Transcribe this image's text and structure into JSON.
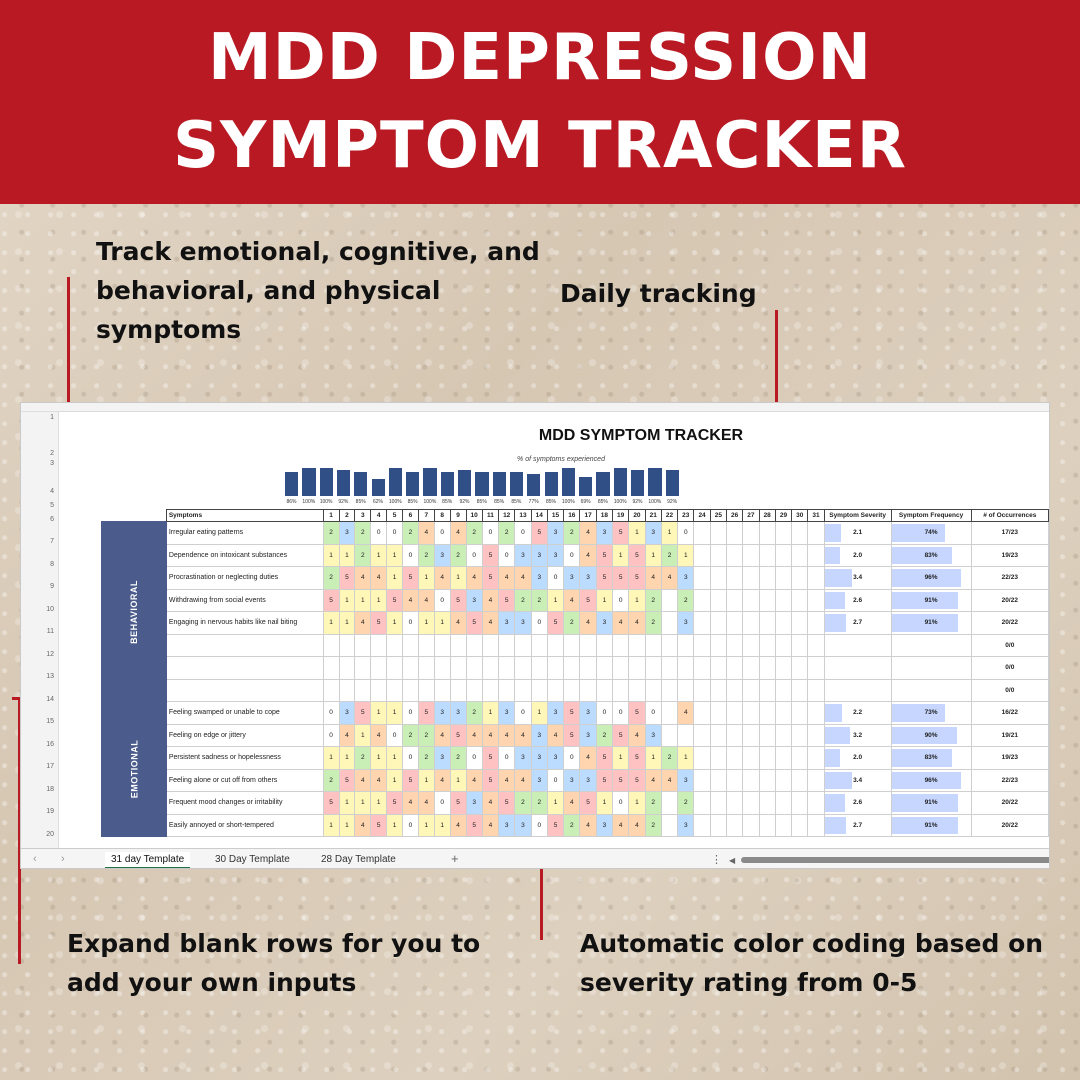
{
  "banner": {
    "title": "MDD DEPRESSION SYMPTOM TRACKER"
  },
  "callouts": {
    "track": "Track emotional, cognitive, and behavioral, and physical symptoms",
    "daily": "Daily tracking",
    "expand": "Expand blank rows for you to add your own inputs",
    "color": "Automatic color coding based on severity rating from 0-5"
  },
  "sheet": {
    "title": "MDD SYMPTOM TRACKER",
    "chart_title": "% of symptoms experienced",
    "headers": {
      "symptoms": "Symptoms",
      "severity": "Symptom Severity",
      "frequency": "Symptom Frequency",
      "occurrences": "# of Occurrences"
    },
    "days": [
      "1",
      "2",
      "3",
      "4",
      "5",
      "6",
      "7",
      "8",
      "9",
      "10",
      "11",
      "12",
      "13",
      "14",
      "15",
      "16",
      "17",
      "18",
      "19",
      "20",
      "21",
      "22",
      "23",
      "24",
      "25",
      "26",
      "27",
      "28",
      "29",
      "30",
      "31"
    ],
    "categories": {
      "behavioral": "BEHAVIORAL",
      "emotional": "EMOTIONAL"
    },
    "behavioral_rows": [
      {
        "name": "Irregular eating patterns",
        "values": [
          2,
          3,
          2,
          0,
          0,
          2,
          4,
          0,
          4,
          2,
          0,
          2,
          0,
          5,
          3,
          2,
          4,
          3,
          5,
          1,
          3,
          1,
          0
        ],
        "severity": "2.1",
        "sev_fill": 0.42,
        "freq": "74%",
        "freq_fill": 0.74,
        "occ": "17/23"
      },
      {
        "name": "Dependence on intoxicant substances",
        "values": [
          1,
          1,
          2,
          1,
          1,
          0,
          2,
          3,
          2,
          0,
          5,
          0,
          3,
          3,
          3,
          0,
          4,
          5,
          1,
          5,
          1,
          2,
          1
        ],
        "severity": "2.0",
        "sev_fill": 0.4,
        "freq": "83%",
        "freq_fill": 0.83,
        "occ": "19/23"
      },
      {
        "name": "Procrastination or neglecting duties",
        "values": [
          2,
          5,
          4,
          4,
          1,
          5,
          1,
          4,
          1,
          4,
          5,
          4,
          4,
          3,
          0,
          3,
          3,
          5,
          5,
          5,
          4,
          4,
          3
        ],
        "severity": "3.4",
        "sev_fill": 0.68,
        "freq": "96%",
        "freq_fill": 0.96,
        "occ": "22/23"
      },
      {
        "name": "Withdrawing from social events",
        "values": [
          5,
          1,
          1,
          1,
          5,
          4,
          4,
          0,
          5,
          3,
          4,
          5,
          2,
          2,
          1,
          4,
          5,
          1,
          0,
          1,
          2,
          null,
          2
        ],
        "severity": "2.6",
        "sev_fill": 0.52,
        "freq": "91%",
        "freq_fill": 0.91,
        "occ": "20/22"
      },
      {
        "name": "Engaging in nervous habits like nail biting",
        "values": [
          1,
          1,
          4,
          5,
          1,
          0,
          1,
          1,
          4,
          5,
          4,
          3,
          3,
          0,
          5,
          2,
          4,
          3,
          4,
          4,
          2,
          null,
          3
        ],
        "severity": "2.7",
        "sev_fill": 0.54,
        "freq": "91%",
        "freq_fill": 0.91,
        "occ": "20/22"
      },
      {
        "name": "",
        "values": [],
        "severity": "",
        "sev_fill": 0,
        "freq": "",
        "freq_fill": 0,
        "occ": "0/0"
      },
      {
        "name": "",
        "values": [],
        "severity": "",
        "sev_fill": 0,
        "freq": "",
        "freq_fill": 0,
        "occ": "0/0"
      },
      {
        "name": "",
        "values": [],
        "severity": "",
        "sev_fill": 0,
        "freq": "",
        "freq_fill": 0,
        "occ": "0/0"
      }
    ],
    "emotional_rows": [
      {
        "name": "Feeling swamped or unable to cope",
        "values": [
          0,
          3,
          5,
          1,
          1,
          0,
          5,
          3,
          3,
          2,
          1,
          3,
          0,
          1,
          3,
          5,
          3,
          0,
          0,
          5,
          0,
          null,
          4
        ],
        "severity": "2.2",
        "sev_fill": 0.44,
        "freq": "73%",
        "freq_fill": 0.73,
        "occ": "16/22"
      },
      {
        "name": "Feeling on edge or jittery",
        "values": [
          0,
          4,
          1,
          4,
          0,
          2,
          2,
          4,
          5,
          4,
          4,
          4,
          4,
          3,
          4,
          5,
          3,
          2,
          5,
          4,
          3,
          null,
          null
        ],
        "severity": "3.2",
        "sev_fill": 0.64,
        "freq": "90%",
        "freq_fill": 0.9,
        "occ": "19/21"
      },
      {
        "name": "Persistent sadness or hopelessness",
        "values": [
          1,
          1,
          2,
          1,
          1,
          0,
          2,
          3,
          2,
          0,
          5,
          0,
          3,
          3,
          3,
          0,
          4,
          5,
          1,
          5,
          1,
          2,
          1
        ],
        "severity": "2.0",
        "sev_fill": 0.4,
        "freq": "83%",
        "freq_fill": 0.83,
        "occ": "19/23"
      },
      {
        "name": "Feeling alone or cut off from others",
        "values": [
          2,
          5,
          4,
          4,
          1,
          5,
          1,
          4,
          1,
          4,
          5,
          4,
          4,
          3,
          0,
          3,
          3,
          5,
          5,
          5,
          4,
          4,
          3
        ],
        "severity": "3.4",
        "sev_fill": 0.68,
        "freq": "96%",
        "freq_fill": 0.96,
        "occ": "22/23"
      },
      {
        "name": "Frequent mood changes or irritability",
        "values": [
          5,
          1,
          1,
          1,
          5,
          4,
          4,
          0,
          5,
          3,
          4,
          5,
          2,
          2,
          1,
          4,
          5,
          1,
          0,
          1,
          2,
          null,
          2
        ],
        "severity": "2.6",
        "sev_fill": 0.52,
        "freq": "91%",
        "freq_fill": 0.91,
        "occ": "20/22"
      },
      {
        "name": "Easily annoyed or short-tempered",
        "values": [
          1,
          1,
          4,
          5,
          1,
          0,
          1,
          1,
          4,
          5,
          4,
          3,
          3,
          0,
          5,
          2,
          4,
          3,
          4,
          4,
          2,
          null,
          3
        ],
        "severity": "2.7",
        "sev_fill": 0.54,
        "freq": "91%",
        "freq_fill": 0.91,
        "occ": "20/22"
      }
    ],
    "pct_bars": [
      {
        "label": "86%",
        "value": 0.86
      },
      {
        "label": "100%",
        "value": 1.0
      },
      {
        "label": "100%",
        "value": 1.0
      },
      {
        "label": "92%",
        "value": 0.92
      },
      {
        "label": "85%",
        "value": 0.85
      },
      {
        "label": "62%",
        "value": 0.62
      },
      {
        "label": "100%",
        "value": 1.0
      },
      {
        "label": "85%",
        "value": 0.85
      },
      {
        "label": "100%",
        "value": 1.0
      },
      {
        "label": "85%",
        "value": 0.85
      },
      {
        "label": "92%",
        "value": 0.92
      },
      {
        "label": "85%",
        "value": 0.85
      },
      {
        "label": "85%",
        "value": 0.85
      },
      {
        "label": "85%",
        "value": 0.85
      },
      {
        "label": "77%",
        "value": 0.77
      },
      {
        "label": "85%",
        "value": 0.85
      },
      {
        "label": "100%",
        "value": 1.0
      },
      {
        "label": "69%",
        "value": 0.69
      },
      {
        "label": "85%",
        "value": 0.85
      },
      {
        "label": "100%",
        "value": 1.0
      },
      {
        "label": "92%",
        "value": 0.92
      },
      {
        "label": "100%",
        "value": 1.0
      },
      {
        "label": "92%",
        "value": 0.92
      }
    ],
    "tabs": [
      "31 day Template",
      "30 Day Template",
      "28 Day Template"
    ],
    "add_tab": "+"
  },
  "colors": {
    "banner": "#b81923",
    "category": "#4a5b8c",
    "bars": "#2f4f86"
  }
}
